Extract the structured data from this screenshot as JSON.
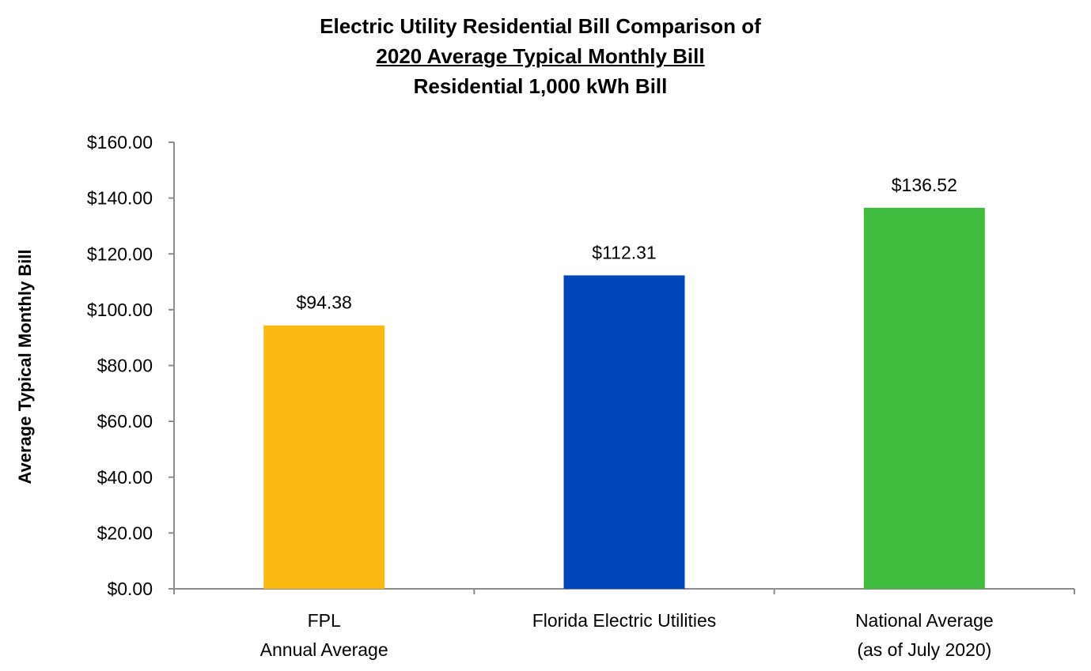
{
  "chart_data": {
    "type": "bar",
    "title": "Electric Utility Residential Bill Comparison of",
    "subtitle": "2020 Average Typical Monthly Bill",
    "subtitle2": "Residential 1,000 kWh Bill",
    "xlabel": "",
    "ylabel": "Average Typical Monthly Bill",
    "ylim": [
      0,
      160
    ],
    "yticks": [
      "$160.00",
      "$140.00",
      "$120.00",
      "$100.00",
      "$80.00",
      "$60.00",
      "$40.00",
      "$20.00",
      "$0.00"
    ],
    "ytick_values": [
      160,
      140,
      120,
      100,
      80,
      60,
      40,
      20,
      0
    ],
    "categories": [
      [
        "FPL",
        "Annual Average"
      ],
      [
        "Florida Electric Utilities"
      ],
      [
        "National Average",
        "(as of July 2020)"
      ]
    ],
    "values": [
      94.38,
      112.31,
      136.52
    ],
    "data_labels": [
      "$94.38",
      "$112.31",
      "$136.52"
    ],
    "colors": [
      "#FDB913",
      "#0047BB",
      "#40BC3F"
    ],
    "grid": false,
    "legend": "none"
  }
}
